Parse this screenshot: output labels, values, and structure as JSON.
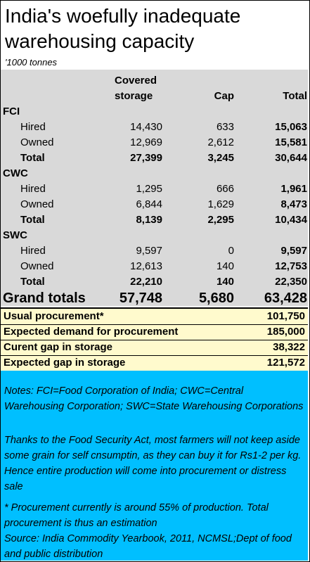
{
  "title_line1": "India's woefully inadequate",
  "title_line2": "warehousing capacity",
  "subtitle": "'1000 tonnes",
  "headers": {
    "covered_line1": "Covered",
    "covered_line2": "storage",
    "cap": "Cap",
    "total": "Total"
  },
  "groups": [
    {
      "name": "FCI",
      "rows": [
        {
          "label": "Hired",
          "covered": "14,430",
          "cap": "633",
          "total": "15,063"
        },
        {
          "label": "Owned",
          "covered": "12,969",
          "cap": "2,612",
          "total": "15,581"
        },
        {
          "label": "Total",
          "covered": "27,399",
          "cap": "3,245",
          "total": "30,644"
        }
      ]
    },
    {
      "name": "CWC",
      "rows": [
        {
          "label": "Hired",
          "covered": "1,295",
          "cap": "666",
          "total": "1,961"
        },
        {
          "label": "Owned",
          "covered": "6,844",
          "cap": "1,629",
          "total": "8,473"
        },
        {
          "label": "Total",
          "covered": "8,139",
          "cap": "2,295",
          "total": "10,434"
        }
      ]
    },
    {
      "name": "SWC",
      "rows": [
        {
          "label": "Hired",
          "covered": "9,597",
          "cap": "0",
          "total": "9,597"
        },
        {
          "label": "Owned",
          "covered": "12,613",
          "cap": "140",
          "total": "12,753"
        },
        {
          "label": "Total",
          "covered": "22,210",
          "cap": "140",
          "total": "22,350"
        }
      ]
    }
  ],
  "grand": {
    "label": "Grand totals",
    "covered": "57,748",
    "cap": "5,680",
    "total": "63,428"
  },
  "summary": [
    {
      "label": "Usual procurement*",
      "value": "101,750"
    },
    {
      "label": "Expected demand for procurement",
      "value": "185,000"
    },
    {
      "label": "Curent gap in storage",
      "value": "38,322"
    },
    {
      "label": "Expected gap in storage",
      "value": "121,572"
    }
  ],
  "notes": {
    "n1": "Notes: FCI=Food Corporation of India; CWC=Central Warehousing Corporation; SWC=State Warehousing Corporations",
    "n2": "Thanks to the Food Security Act, most farmers will not keep aside some grain for self cnsumptin, as they can buy it for Rs1-2 per kg.  Hence entire production will come into procurement or distress sale",
    "n3": "* Procurement currently is around 55% of production. Total procurement is thus an estimation",
    "n4": "Source: India Commodity Yearbook, 2011, NCMSL;Dept of food and public distribution"
  },
  "colors": {
    "table_bg": "#d9d9d9",
    "summary_bg": "#fffacd",
    "notes_bg": "#00bfff"
  }
}
